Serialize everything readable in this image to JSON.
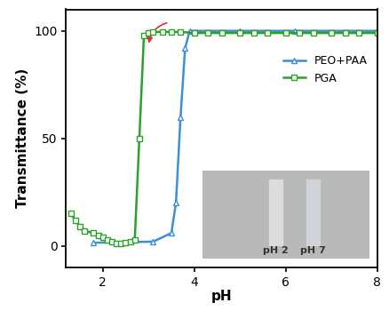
{
  "chart_data": {
    "type": "line",
    "x_label": "pH",
    "y_label": "Transmittance (%)",
    "xlim": [
      1.2,
      8
    ],
    "xticks": [
      2,
      4,
      6,
      8
    ],
    "ylim": [
      -10,
      110
    ],
    "yticks": [
      0,
      50,
      100
    ],
    "legend": "upper right",
    "series": [
      {
        "name": "PEO+PAA",
        "color": "#3d8fd6",
        "marker": "triangle",
        "line_style": "solid",
        "x": [
          1.8,
          3.1,
          3.5,
          3.6,
          3.7,
          3.8,
          3.9,
          5.0,
          6.2,
          8.0
        ],
        "values": [
          1.5,
          2,
          6,
          20,
          60,
          92,
          100,
          100,
          100,
          100
        ]
      },
      {
        "name": "PGA",
        "color": "#2ca02c",
        "marker": "square",
        "line_style": "solid",
        "x": [
          1.3,
          1.4,
          1.5,
          1.6,
          1.8,
          1.9,
          2.0,
          2.1,
          2.2,
          2.3,
          2.4,
          2.5,
          2.6,
          2.7,
          2.8,
          2.9,
          3.0,
          3.1,
          3.3,
          3.5,
          3.7,
          4.0,
          4.3,
          4.6,
          5.0,
          5.3,
          5.6,
          6.0,
          6.3,
          6.6,
          7.0,
          7.3,
          7.6,
          8.0
        ],
        "values": [
          15,
          12,
          9,
          7,
          6,
          5,
          4,
          3,
          2,
          1,
          1,
          1.5,
          2,
          3,
          50,
          98,
          99,
          99.5,
          99.5,
          99.5,
          99.5,
          99,
          99,
          99,
          99,
          99,
          99,
          99,
          99,
          99,
          99,
          99,
          99,
          99
        ]
      }
    ],
    "annotations": [
      "pH 2",
      "pH 7"
    ]
  }
}
